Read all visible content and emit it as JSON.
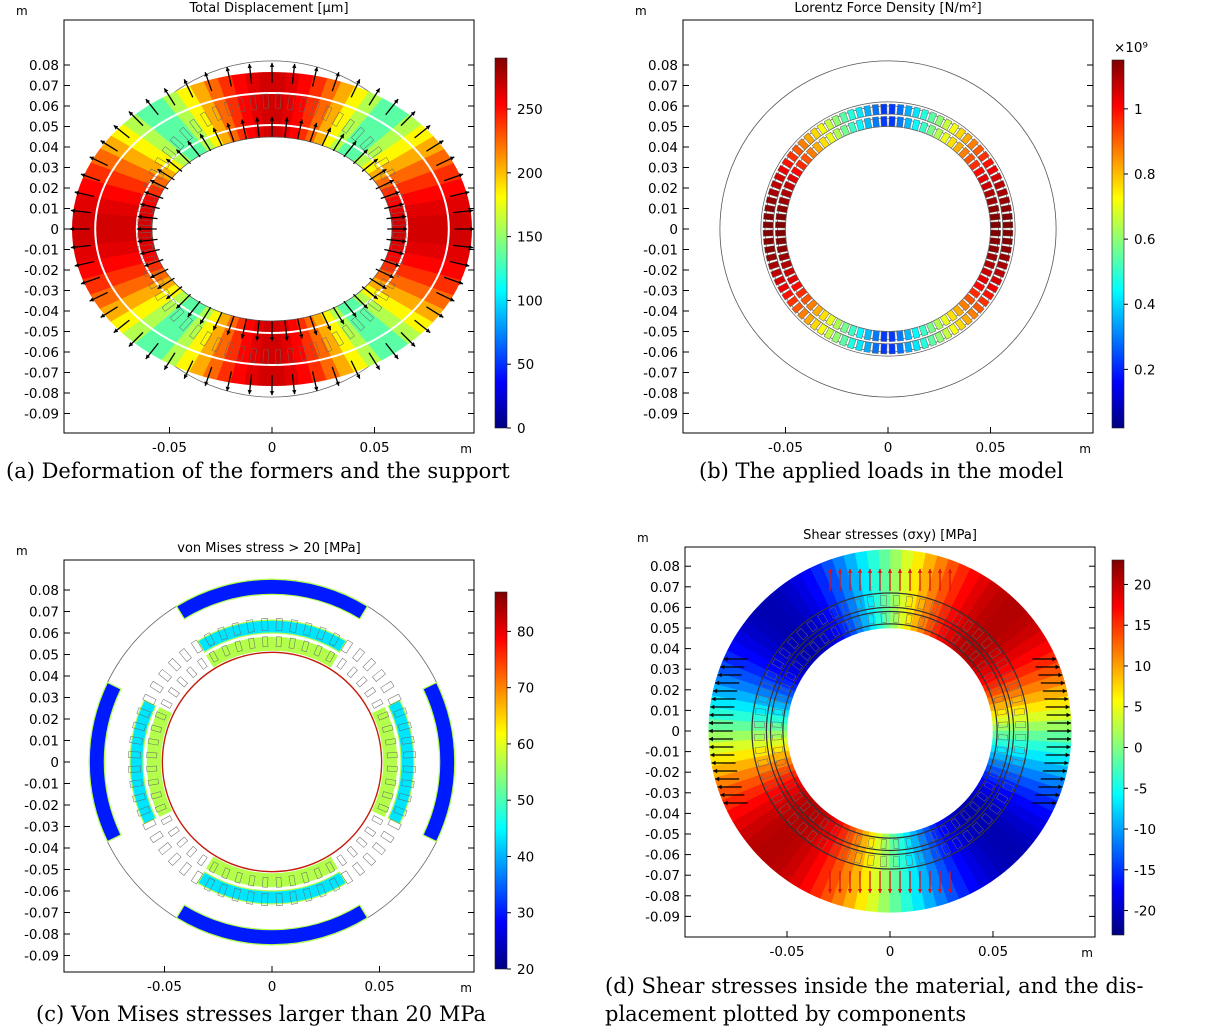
{
  "chart_data": [
    {
      "type": "heatmap",
      "title": "Total Displacement [µm]",
      "xlabel": "m",
      "ylabel": "m",
      "x_ticks": [
        "-0.05",
        "0",
        "0.05"
      ],
      "y_ticks": [
        "0.08",
        "0.07",
        "0.06",
        "0.05",
        "0.04",
        "0.03",
        "0.02",
        "0.01",
        "0",
        "-0.01",
        "-0.02",
        "-0.03",
        "-0.04",
        "-0.05",
        "-0.06",
        "-0.07",
        "-0.08",
        "-0.09"
      ],
      "colorbar": {
        "ticks": [
          "250",
          "200",
          "150",
          "100",
          "50",
          "0"
        ],
        "range": [
          0,
          290
        ]
      },
      "caption": "(a) Deformation of the formers and the support"
    },
    {
      "type": "heatmap",
      "title": "Lorentz Force Density [N/m²]",
      "xlabel": "m",
      "ylabel": "m",
      "x_ticks": [
        "-0.05",
        "0",
        "0.05"
      ],
      "y_ticks": [
        "0.08",
        "0.07",
        "0.06",
        "0.05",
        "0.04",
        "0.03",
        "0.02",
        "0.01",
        "0",
        "-0.01",
        "-0.02",
        "-0.03",
        "-0.04",
        "-0.05",
        "-0.06",
        "-0.07",
        "-0.08",
        "-0.09"
      ],
      "colorbar": {
        "multiplier": "×10⁹",
        "ticks": [
          "1",
          "0.8",
          "0.6",
          "0.4",
          "0.2"
        ],
        "range": [
          0.02,
          1.15
        ]
      },
      "caption": "(b) The applied loads in the model"
    },
    {
      "type": "heatmap",
      "title": "von Mises stress > 20 [MPa]",
      "xlabel": "m",
      "ylabel": "m",
      "x_ticks": [
        "-0.05",
        "0",
        "0.05"
      ],
      "y_ticks": [
        "0.08",
        "0.07",
        "0.06",
        "0.05",
        "0.04",
        "0.03",
        "0.02",
        "0.01",
        "0",
        "-0.01",
        "-0.02",
        "-0.03",
        "-0.04",
        "-0.05",
        "-0.06",
        "-0.07",
        "-0.08",
        "-0.09"
      ],
      "colorbar": {
        "ticks": [
          "80",
          "70",
          "60",
          "50",
          "40",
          "30",
          "20"
        ],
        "range": [
          20,
          87
        ]
      },
      "caption": "(c) Von Mises stresses larger than 20 MPa"
    },
    {
      "type": "heatmap",
      "title": "Shear stresses (σxy) [MPa]",
      "xlabel": "m",
      "ylabel": "m",
      "x_ticks": [
        "-0.05",
        "0",
        "0.05"
      ],
      "y_ticks": [
        "0.08",
        "0.07",
        "0.06",
        "0.05",
        "0.04",
        "0.03",
        "0.02",
        "0.01",
        "0",
        "-0.01",
        "-0.02",
        "-0.03",
        "-0.04",
        "-0.05",
        "-0.06",
        "-0.07",
        "-0.08",
        "-0.09"
      ],
      "colorbar": {
        "ticks": [
          "20",
          "15",
          "10",
          "5",
          "0",
          "-5",
          "-10",
          "-15",
          "-20"
        ],
        "range": [
          -23,
          23
        ]
      },
      "caption_lines": [
        "(d) Shear stresses inside the material, and the dis-",
        "placement plotted by components"
      ]
    }
  ],
  "colors": {
    "jet": [
      "#00007f",
      "#0000ff",
      "#007fff",
      "#00ffff",
      "#7fff7f",
      "#ffff00",
      "#ff7f00",
      "#ff0000",
      "#7f0000"
    ],
    "outline": "#555555",
    "arrow": "#000000",
    "arrow_red": "#e01010"
  }
}
